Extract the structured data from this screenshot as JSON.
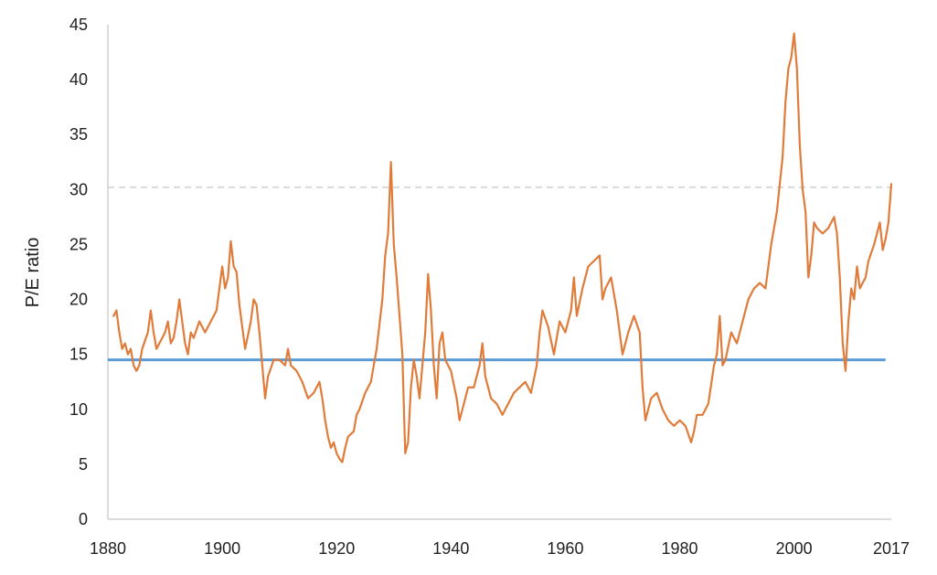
{
  "chart_data": {
    "type": "line",
    "title": "",
    "xlabel": "",
    "ylabel": "P/E ratio",
    "xlim": [
      1880,
      2017
    ],
    "ylim": [
      0,
      45
    ],
    "x_ticks": [
      1880,
      1900,
      1920,
      1940,
      1960,
      1980,
      2000,
      2017
    ],
    "y_ticks": [
      0,
      5,
      10,
      15,
      20,
      25,
      30,
      35,
      40,
      45
    ],
    "grid": false,
    "legend": "none",
    "series": [
      {
        "color": "#e07b39",
        "points": [
          [
            1881,
            18.5
          ],
          [
            1881.5,
            19
          ],
          [
            1882,
            17
          ],
          [
            1882.5,
            15.5
          ],
          [
            1883,
            16
          ],
          [
            1883.5,
            15
          ],
          [
            1884,
            15.5
          ],
          [
            1884.5,
            14
          ],
          [
            1885,
            13.5
          ],
          [
            1885.5,
            14
          ],
          [
            1886,
            15.5
          ],
          [
            1887,
            17
          ],
          [
            1887.5,
            19
          ],
          [
            1888,
            17
          ],
          [
            1888.5,
            15.5
          ],
          [
            1889,
            16
          ],
          [
            1890,
            17
          ],
          [
            1890.5,
            18
          ],
          [
            1891,
            16
          ],
          [
            1891.5,
            16.5
          ],
          [
            1892,
            18
          ],
          [
            1892.5,
            20
          ],
          [
            1893,
            18
          ],
          [
            1893.5,
            16
          ],
          [
            1894,
            15
          ],
          [
            1894.5,
            17
          ],
          [
            1895,
            16.5
          ],
          [
            1896,
            18
          ],
          [
            1897,
            17
          ],
          [
            1898,
            18
          ],
          [
            1899,
            19
          ],
          [
            1899.5,
            21
          ],
          [
            1900,
            23
          ],
          [
            1900.5,
            21
          ],
          [
            1901,
            22
          ],
          [
            1901.5,
            25.3
          ],
          [
            1902,
            23
          ],
          [
            1902.5,
            22.5
          ],
          [
            1903,
            19.5
          ],
          [
            1903.5,
            17.5
          ],
          [
            1904,
            15.5
          ],
          [
            1905,
            18
          ],
          [
            1905.5,
            20
          ],
          [
            1906,
            19.5
          ],
          [
            1906.5,
            17
          ],
          [
            1907,
            14
          ],
          [
            1907.5,
            11
          ],
          [
            1908,
            13
          ],
          [
            1909,
            14.5
          ],
          [
            1910,
            14.5
          ],
          [
            1911,
            14
          ],
          [
            1911.5,
            15.5
          ],
          [
            1912,
            14
          ],
          [
            1913,
            13.5
          ],
          [
            1914,
            12.5
          ],
          [
            1915,
            11
          ],
          [
            1916,
            11.5
          ],
          [
            1917,
            12.5
          ],
          [
            1917.5,
            11
          ],
          [
            1918,
            9
          ],
          [
            1918.5,
            7.5
          ],
          [
            1919,
            6.5
          ],
          [
            1919.5,
            7
          ],
          [
            1920,
            6
          ],
          [
            1920.5,
            5.5
          ],
          [
            1921,
            5.2
          ],
          [
            1921.5,
            6.5
          ],
          [
            1922,
            7.5
          ],
          [
            1923,
            8
          ],
          [
            1923.5,
            9.5
          ],
          [
            1924,
            10
          ],
          [
            1925,
            11.5
          ],
          [
            1926,
            12.5
          ],
          [
            1927,
            15.5
          ],
          [
            1928,
            20
          ],
          [
            1928.5,
            24
          ],
          [
            1929,
            26
          ],
          [
            1929.5,
            32.5
          ],
          [
            1930,
            25
          ],
          [
            1930.5,
            22
          ],
          [
            1931,
            18.5
          ],
          [
            1931.5,
            15
          ],
          [
            1932,
            6
          ],
          [
            1932.5,
            7
          ],
          [
            1933,
            12
          ],
          [
            1933.5,
            14.5
          ],
          [
            1934,
            13
          ],
          [
            1934.5,
            11
          ],
          [
            1935,
            14
          ],
          [
            1935.5,
            17
          ],
          [
            1936,
            22.3
          ],
          [
            1936.5,
            19
          ],
          [
            1937,
            14
          ],
          [
            1937.5,
            11
          ],
          [
            1938,
            16
          ],
          [
            1938.5,
            17
          ],
          [
            1939,
            14.5
          ],
          [
            1940,
            13.5
          ],
          [
            1941,
            11
          ],
          [
            1941.5,
            9
          ],
          [
            1942,
            10
          ],
          [
            1943,
            12
          ],
          [
            1944,
            12
          ],
          [
            1945,
            14
          ],
          [
            1945.5,
            16
          ],
          [
            1946,
            13
          ],
          [
            1946.5,
            12
          ],
          [
            1947,
            11
          ],
          [
            1948,
            10.5
          ],
          [
            1949,
            9.5
          ],
          [
            1950,
            10.5
          ],
          [
            1951,
            11.5
          ],
          [
            1952,
            12
          ],
          [
            1953,
            12.5
          ],
          [
            1954,
            11.5
          ],
          [
            1955,
            14
          ],
          [
            1955.5,
            17
          ],
          [
            1956,
            19
          ],
          [
            1957,
            17.5
          ],
          [
            1958,
            15
          ],
          [
            1959,
            18
          ],
          [
            1960,
            17
          ],
          [
            1961,
            19
          ],
          [
            1961.5,
            22
          ],
          [
            1962,
            18.5
          ],
          [
            1963,
            21
          ],
          [
            1964,
            23
          ],
          [
            1965,
            23.5
          ],
          [
            1966,
            24
          ],
          [
            1966.5,
            20
          ],
          [
            1967,
            21
          ],
          [
            1968,
            22
          ],
          [
            1969,
            19
          ],
          [
            1970,
            15
          ],
          [
            1971,
            17
          ],
          [
            1972,
            18.5
          ],
          [
            1973,
            17
          ],
          [
            1973.5,
            12
          ],
          [
            1974,
            9
          ],
          [
            1974.5,
            10
          ],
          [
            1975,
            11
          ],
          [
            1976,
            11.5
          ],
          [
            1977,
            10
          ],
          [
            1978,
            9
          ],
          [
            1979,
            8.5
          ],
          [
            1980,
            9
          ],
          [
            1981,
            8.5
          ],
          [
            1982,
            7
          ],
          [
            1982.5,
            8
          ],
          [
            1983,
            9.5
          ],
          [
            1984,
            9.5
          ],
          [
            1985,
            10.5
          ],
          [
            1986,
            14
          ],
          [
            1986.5,
            15
          ],
          [
            1987,
            18.5
          ],
          [
            1987.5,
            14
          ],
          [
            1988,
            14.5
          ],
          [
            1989,
            17
          ],
          [
            1990,
            16
          ],
          [
            1991,
            18
          ],
          [
            1992,
            20
          ],
          [
            1993,
            21
          ],
          [
            1994,
            21.5
          ],
          [
            1995,
            21
          ],
          [
            1996,
            25
          ],
          [
            1997,
            28
          ],
          [
            1998,
            33
          ],
          [
            1998.5,
            38
          ],
          [
            1999,
            41
          ],
          [
            1999.5,
            42
          ],
          [
            2000,
            44.2
          ],
          [
            2000.5,
            41
          ],
          [
            2001,
            34
          ],
          [
            2001.5,
            30
          ],
          [
            2002,
            28
          ],
          [
            2002.5,
            22
          ],
          [
            2003,
            24
          ],
          [
            2003.5,
            27
          ],
          [
            2004,
            26.5
          ],
          [
            2005,
            26
          ],
          [
            2006,
            26.5
          ],
          [
            2006.5,
            27
          ],
          [
            2007,
            27.5
          ],
          [
            2007.5,
            26
          ],
          [
            2008,
            22
          ],
          [
            2008.5,
            16
          ],
          [
            2009,
            13.5
          ],
          [
            2009.5,
            18
          ],
          [
            2010,
            21
          ],
          [
            2010.5,
            20
          ],
          [
            2011,
            23
          ],
          [
            2011.5,
            21
          ],
          [
            2012,
            21.5
          ],
          [
            2012.5,
            22
          ],
          [
            2013,
            23.5
          ],
          [
            2014,
            25
          ],
          [
            2014.5,
            26
          ],
          [
            2015,
            27
          ],
          [
            2015.5,
            24.5
          ],
          [
            2016,
            25.5
          ],
          [
            2016.5,
            27
          ],
          [
            2017,
            30.5
          ]
        ]
      }
    ],
    "reference_lines": [
      {
        "type": "horizontal",
        "y": 14.5,
        "x_range": [
          1880,
          2016
        ],
        "color": "#5b9bd5",
        "style": "solid"
      },
      {
        "type": "horizontal",
        "y": 30.2,
        "x_range": [
          1880,
          2017
        ],
        "color": "#d9d9d9",
        "style": "dashed"
      }
    ]
  }
}
